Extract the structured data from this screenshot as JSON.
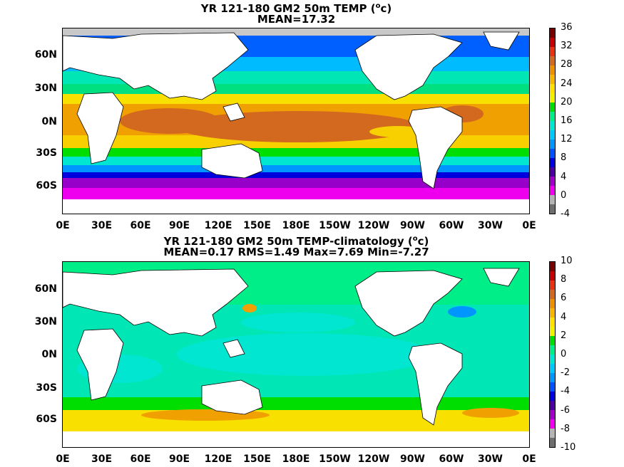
{
  "panel1": {
    "title_line1": "YR 121-180 GM2 50m TEMP (",
    "title_sup": "o",
    "title_unit": "c)",
    "title_line2": "MEAN=17.32",
    "colorbar_ticks": [
      "36",
      "32",
      "28",
      "24",
      "20",
      "16",
      "12",
      "8",
      "4",
      "0",
      "-4"
    ],
    "colorbar_colors": [
      "#7a0000",
      "#c40000",
      "#e8320f",
      "#d2691e",
      "#ee8f00",
      "#f8b400",
      "#ffe000",
      "#f0f000",
      "#00dd00",
      "#00ee88",
      "#00e6d0",
      "#00c8ff",
      "#0096ff",
      "#0050ff",
      "#0000dd",
      "#4a00a0",
      "#a000c8",
      "#ee00ee",
      "#b4b4b4",
      "#6e6e6e"
    ]
  },
  "panel2": {
    "title_line1": "YR 121-180 GM2 50m TEMP-climatology (",
    "title_sup": "o",
    "title_unit": "c)",
    "title_line2": "MEAN=0.17   RMS=1.49   Max=7.69   Min=-7.27",
    "colorbar_ticks": [
      "10",
      "8",
      "6",
      "4",
      "2",
      "0",
      "-2",
      "-4",
      "-6",
      "-8",
      "-10"
    ],
    "colorbar_colors": [
      "#7a0000",
      "#c40000",
      "#e8320f",
      "#d2691e",
      "#ee8f00",
      "#f8b400",
      "#ffe000",
      "#f0f000",
      "#00dd00",
      "#00ee88",
      "#00e6d0",
      "#00c8ff",
      "#0096ff",
      "#0050ff",
      "#0000dd",
      "#4a00a0",
      "#a000c8",
      "#ee00ee",
      "#b4b4b4",
      "#6e6e6e"
    ]
  },
  "lat_labels": [
    "60N",
    "30N",
    "0N",
    "30S",
    "60S"
  ],
  "lon_labels": [
    "0E",
    "30E",
    "60E",
    "90E",
    "120E",
    "150E",
    "180E",
    "150W",
    "120W",
    "90W",
    "60W",
    "30W",
    "0E"
  ]
}
